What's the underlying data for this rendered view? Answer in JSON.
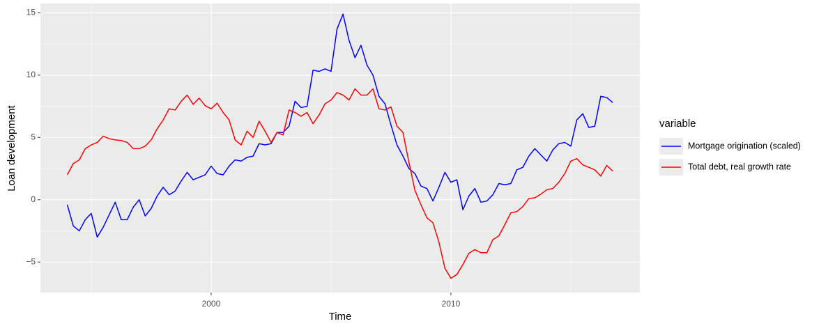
{
  "chart_data": {
    "type": "line",
    "x_label": "Time",
    "y_label": "Loan development",
    "legend_title": "variable",
    "x": [
      1994,
      1994.25,
      1994.5,
      1994.75,
      1995,
      1995.25,
      1995.5,
      1995.75,
      1996,
      1996.25,
      1996.5,
      1996.75,
      1997,
      1997.25,
      1997.5,
      1997.75,
      1998,
      1998.25,
      1998.5,
      1998.75,
      1999,
      1999.25,
      1999.5,
      1999.75,
      2000,
      2000.25,
      2000.5,
      2000.75,
      2001,
      2001.25,
      2001.5,
      2001.75,
      2002,
      2002.25,
      2002.5,
      2002.75,
      2003,
      2003.25,
      2003.5,
      2003.75,
      2004,
      2004.25,
      2004.5,
      2004.75,
      2005,
      2005.25,
      2005.5,
      2005.75,
      2006,
      2006.25,
      2006.5,
      2006.75,
      2007,
      2007.25,
      2007.5,
      2007.75,
      2008,
      2008.25,
      2008.5,
      2008.75,
      2009,
      2009.25,
      2009.5,
      2009.75,
      2010,
      2010.25,
      2010.5,
      2010.75,
      2011,
      2011.25,
      2011.5,
      2011.75,
      2012,
      2012.25,
      2012.5,
      2012.75,
      2013,
      2013.25,
      2013.5,
      2013.75,
      2014,
      2014.25,
      2014.5,
      2014.75,
      2015,
      2015.25,
      2015.5,
      2015.75,
      2016,
      2016.25,
      2016.5,
      2016.75
    ],
    "series": [
      {
        "name": "Mortgage origination (scaled)",
        "color": "#0000ff",
        "values": [
          -0.4,
          -2.1,
          -2.5,
          -1.6,
          -1.1,
          -3.0,
          -2.2,
          -1.2,
          -0.2,
          -1.6,
          -1.6,
          -0.6,
          0.0,
          -1.3,
          -0.7,
          0.3,
          1.0,
          0.4,
          0.7,
          1.5,
          2.2,
          1.6,
          1.8,
          2.0,
          2.7,
          2.1,
          2.0,
          2.7,
          3.2,
          3.1,
          3.4,
          3.5,
          4.5,
          4.4,
          4.5,
          5.4,
          5.4,
          5.9,
          7.9,
          7.4,
          7.5,
          10.4,
          10.3,
          10.5,
          10.3,
          13.7,
          14.9,
          12.8,
          11.4,
          12.4,
          10.8,
          10.0,
          8.3,
          7.7,
          6.0,
          4.4,
          3.5,
          2.5,
          2.1,
          1.1,
          0.9,
          -0.1,
          1.0,
          2.2,
          1.4,
          1.6,
          -0.8,
          0.3,
          0.9,
          -0.2,
          -0.1,
          0.4,
          1.3,
          1.2,
          1.3,
          2.4,
          2.6,
          3.5,
          4.1,
          3.6,
          3.1,
          4.0,
          4.5,
          4.6,
          4.3,
          6.4,
          6.9,
          5.8,
          5.9,
          8.3,
          8.2,
          7.8
        ]
      },
      {
        "name": "Total debt, real growth rate",
        "color": "#ff0000",
        "values": [
          2.0,
          2.9,
          3.2,
          4.1,
          4.4,
          4.6,
          5.1,
          4.9,
          4.8,
          4.75,
          4.6,
          4.1,
          4.1,
          4.3,
          4.8,
          5.7,
          6.4,
          7.3,
          7.2,
          7.9,
          8.4,
          7.65,
          8.15,
          7.55,
          7.3,
          7.75,
          7.0,
          6.4,
          4.8,
          4.4,
          5.5,
          5.0,
          6.3,
          5.5,
          4.6,
          5.4,
          5.2,
          7.2,
          7.0,
          6.7,
          7.0,
          6.1,
          6.8,
          7.7,
          8.0,
          8.6,
          8.4,
          8.0,
          8.9,
          8.4,
          8.4,
          8.9,
          7.3,
          7.2,
          7.45,
          5.9,
          5.4,
          3.0,
          0.75,
          -0.4,
          -1.45,
          -1.85,
          -3.4,
          -5.5,
          -6.3,
          -6.0,
          -5.2,
          -4.3,
          -4.0,
          -4.25,
          -4.25,
          -3.2,
          -2.9,
          -2.0,
          -1.05,
          -0.95,
          -0.55,
          0.1,
          0.15,
          0.45,
          0.8,
          0.9,
          1.4,
          2.1,
          3.1,
          3.3,
          2.8,
          2.6,
          2.4,
          1.9,
          2.75,
          2.3
        ]
      }
    ],
    "xlim": [
      1992.88,
      2017.88
    ],
    "xticks": [
      2000,
      2010
    ],
    "ylim": [
      -7.45,
      15.75
    ],
    "yticks": [
      {
        "value": -5,
        "label": "−5"
      },
      0,
      5,
      10,
      15
    ],
    "grid": true,
    "legend": "right"
  }
}
